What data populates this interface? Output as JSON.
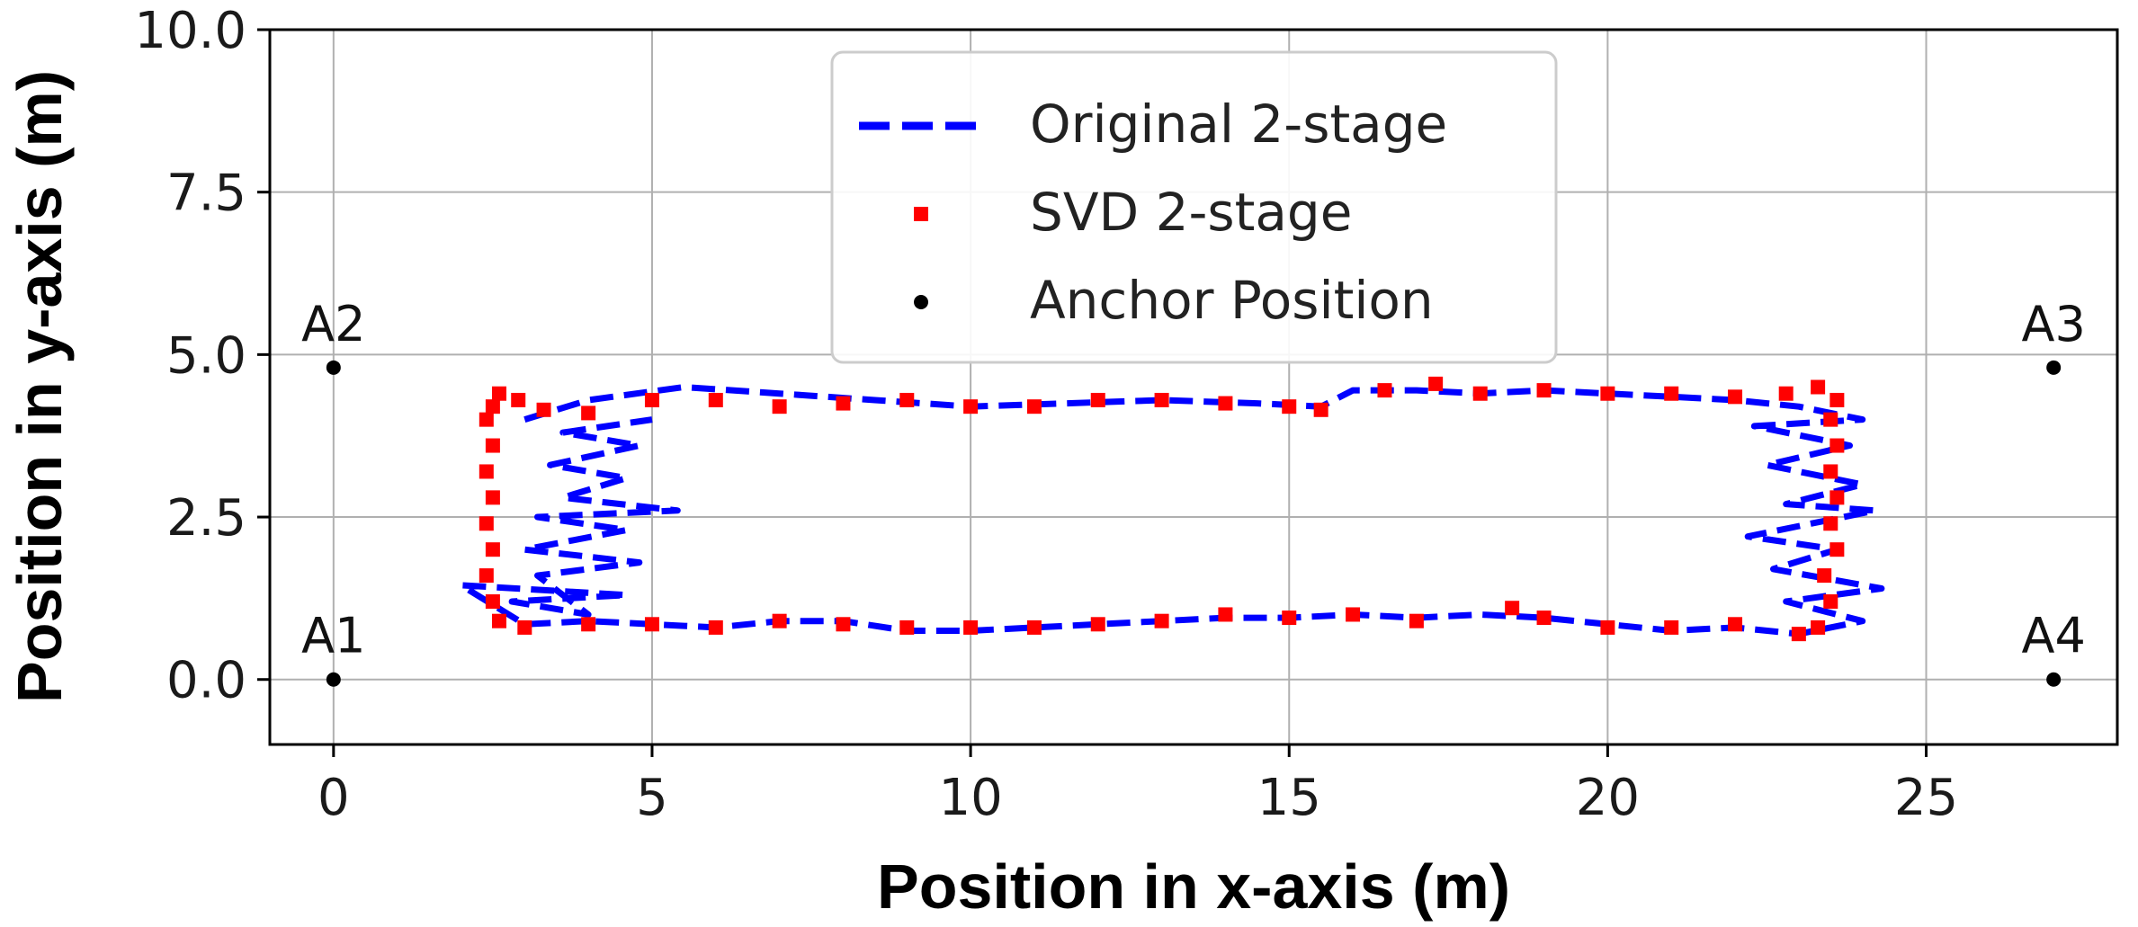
{
  "chart_data": {
    "type": "scatter",
    "xlabel": "Position in x-axis (m)",
    "ylabel": "Position in y-axis (m)",
    "xlim": [
      -1,
      28
    ],
    "ylim": [
      -1,
      10
    ],
    "xticks": [
      "0",
      "5",
      "10",
      "15",
      "20",
      "25"
    ],
    "xtick_values": [
      0,
      5,
      10,
      15,
      20,
      25
    ],
    "yticks": [
      "0.0",
      "2.5",
      "5.0",
      "7.5",
      "10.0"
    ],
    "ytick_values": [
      0,
      2.5,
      5,
      7.5,
      10
    ],
    "grid": true,
    "legend_position": "top-center",
    "series": [
      {
        "name": "Original 2-stage",
        "style": "dashed-line",
        "color": "#0000ff",
        "points": [
          [
            3.0,
            4.0
          ],
          [
            4.0,
            4.3
          ],
          [
            5.5,
            4.5
          ],
          [
            7.0,
            4.4
          ],
          [
            8.5,
            4.3
          ],
          [
            10.0,
            4.2
          ],
          [
            11.5,
            4.25
          ],
          [
            13.0,
            4.3
          ],
          [
            14.5,
            4.25
          ],
          [
            15.5,
            4.2
          ],
          [
            16.0,
            4.45
          ],
          [
            17.0,
            4.45
          ],
          [
            18.0,
            4.4
          ],
          [
            19.0,
            4.45
          ],
          [
            20.0,
            4.4
          ],
          [
            21.0,
            4.35
          ],
          [
            22.0,
            4.3
          ],
          [
            23.0,
            4.2
          ],
          [
            24.0,
            4.0
          ],
          [
            22.3,
            3.9
          ],
          [
            23.8,
            3.6
          ],
          [
            22.5,
            3.3
          ],
          [
            24.0,
            3.0
          ],
          [
            22.8,
            2.7
          ],
          [
            24.2,
            2.6
          ],
          [
            22.2,
            2.2
          ],
          [
            23.6,
            2.0
          ],
          [
            22.6,
            1.7
          ],
          [
            24.3,
            1.4
          ],
          [
            22.8,
            1.2
          ],
          [
            24.0,
            0.9
          ],
          [
            23.0,
            0.7
          ],
          [
            22.0,
            0.8
          ],
          [
            21.0,
            0.75
          ],
          [
            20.0,
            0.85
          ],
          [
            19.0,
            0.95
          ],
          [
            18.0,
            1.0
          ],
          [
            17.0,
            0.95
          ],
          [
            16.0,
            1.0
          ],
          [
            15.0,
            0.95
          ],
          [
            14.0,
            0.95
          ],
          [
            13.0,
            0.9
          ],
          [
            12.0,
            0.85
          ],
          [
            11.0,
            0.8
          ],
          [
            10.0,
            0.75
          ],
          [
            9.0,
            0.75
          ],
          [
            8.0,
            0.9
          ],
          [
            7.0,
            0.9
          ],
          [
            6.0,
            0.8
          ],
          [
            5.0,
            0.85
          ],
          [
            4.0,
            0.9
          ],
          [
            3.0,
            0.85
          ],
          [
            2.0,
            1.45
          ],
          [
            4.6,
            1.3
          ],
          [
            2.8,
            1.2
          ],
          [
            4.0,
            1.0
          ],
          [
            3.2,
            1.6
          ],
          [
            4.8,
            1.8
          ],
          [
            3.0,
            2.0
          ],
          [
            4.6,
            2.3
          ],
          [
            3.2,
            2.5
          ],
          [
            5.4,
            2.6
          ],
          [
            3.6,
            2.8
          ],
          [
            4.6,
            3.1
          ],
          [
            3.4,
            3.3
          ],
          [
            4.8,
            3.6
          ],
          [
            3.6,
            3.8
          ],
          [
            5.0,
            4.0
          ]
        ]
      },
      {
        "name": "SVD 2-stage",
        "style": "square-markers",
        "color": "#ff0000",
        "points": [
          [
            2.5,
            4.2
          ],
          [
            2.6,
            4.4
          ],
          [
            2.9,
            4.3
          ],
          [
            3.3,
            4.15
          ],
          [
            4.0,
            4.1
          ],
          [
            5.0,
            4.3
          ],
          [
            6.0,
            4.3
          ],
          [
            7.0,
            4.2
          ],
          [
            8.0,
            4.25
          ],
          [
            9.0,
            4.3
          ],
          [
            10.0,
            4.2
          ],
          [
            11.0,
            4.2
          ],
          [
            12.0,
            4.3
          ],
          [
            13.0,
            4.3
          ],
          [
            14.0,
            4.25
          ],
          [
            15.0,
            4.2
          ],
          [
            15.5,
            4.15
          ],
          [
            16.5,
            4.45
          ],
          [
            17.3,
            4.55
          ],
          [
            18.0,
            4.4
          ],
          [
            19.0,
            4.45
          ],
          [
            20.0,
            4.4
          ],
          [
            21.0,
            4.4
          ],
          [
            22.0,
            4.35
          ],
          [
            22.8,
            4.4
          ],
          [
            23.3,
            4.5
          ],
          [
            23.6,
            4.3
          ],
          [
            23.5,
            4.0
          ],
          [
            23.6,
            3.6
          ],
          [
            23.5,
            3.2
          ],
          [
            23.6,
            2.8
          ],
          [
            23.5,
            2.4
          ],
          [
            23.6,
            2.0
          ],
          [
            23.4,
            1.6
          ],
          [
            23.5,
            1.2
          ],
          [
            23.3,
            0.8
          ],
          [
            23.0,
            0.7
          ],
          [
            22.0,
            0.85
          ],
          [
            21.0,
            0.8
          ],
          [
            20.0,
            0.8
          ],
          [
            19.0,
            0.95
          ],
          [
            18.5,
            1.1
          ],
          [
            17.0,
            0.9
          ],
          [
            16.0,
            1.0
          ],
          [
            15.0,
            0.95
          ],
          [
            14.0,
            1.0
          ],
          [
            13.0,
            0.9
          ],
          [
            12.0,
            0.85
          ],
          [
            11.0,
            0.8
          ],
          [
            10.0,
            0.8
          ],
          [
            9.0,
            0.8
          ],
          [
            8.0,
            0.85
          ],
          [
            7.0,
            0.9
          ],
          [
            6.0,
            0.8
          ],
          [
            5.0,
            0.85
          ],
          [
            4.0,
            0.85
          ],
          [
            3.0,
            0.8
          ],
          [
            2.6,
            0.9
          ],
          [
            2.5,
            1.2
          ],
          [
            2.4,
            1.6
          ],
          [
            2.5,
            2.0
          ],
          [
            2.4,
            2.4
          ],
          [
            2.5,
            2.8
          ],
          [
            2.4,
            3.2
          ],
          [
            2.5,
            3.6
          ],
          [
            2.4,
            4.0
          ]
        ]
      },
      {
        "name": "Anchor Position",
        "style": "dot-markers",
        "color": "#000000",
        "points": [
          [
            0,
            0
          ],
          [
            0,
            4.8
          ],
          [
            27,
            4.8
          ],
          [
            27,
            0
          ]
        ],
        "labels": [
          "A1",
          "A2",
          "A3",
          "A4"
        ]
      }
    ]
  }
}
